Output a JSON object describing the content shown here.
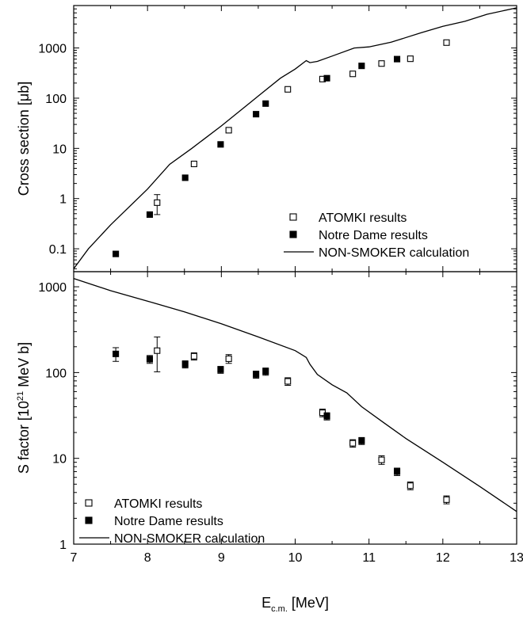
{
  "chart_data": [
    {
      "type": "scatter",
      "title": "",
      "ylabel_parts": [
        "Cross section [",
        "μ",
        "b]"
      ],
      "xlim": [
        7,
        13
      ],
      "ylim": [
        0.035,
        7000
      ],
      "yscale": "log",
      "ytick_values": [
        0.1,
        1,
        10,
        100,
        1000
      ],
      "ytick_labels": [
        "0.1",
        "1",
        "10",
        "100",
        "1000"
      ],
      "legend_position": "bottom-right",
      "series": [
        {
          "name": "ATOMKI results",
          "marker": "open-square",
          "points": [
            {
              "x": 8.13,
              "y": 0.83,
              "err_lo": 0.35,
              "err_hi": 0.37
            },
            {
              "x": 8.63,
              "y": 4.9
            },
            {
              "x": 9.1,
              "y": 23
            },
            {
              "x": 9.9,
              "y": 150
            },
            {
              "x": 10.37,
              "y": 240
            },
            {
              "x": 10.78,
              "y": 305
            },
            {
              "x": 11.17,
              "y": 490
            },
            {
              "x": 11.56,
              "y": 610
            },
            {
              "x": 12.05,
              "y": 1280
            }
          ]
        },
        {
          "name": "Notre Dame results",
          "marker": "filled-square",
          "points": [
            {
              "x": 7.57,
              "y": 0.079
            },
            {
              "x": 8.03,
              "y": 0.48
            },
            {
              "x": 8.51,
              "y": 2.6
            },
            {
              "x": 8.99,
              "y": 12
            },
            {
              "x": 9.47,
              "y": 48
            },
            {
              "x": 9.6,
              "y": 78
            },
            {
              "x": 10.43,
              "y": 250
            },
            {
              "x": 10.9,
              "y": 440
            },
            {
              "x": 11.38,
              "y": 600
            }
          ]
        },
        {
          "name": "NON-SMOKER calculation",
          "marker": "line",
          "points": [
            {
              "x": 7.0,
              "y": 0.04
            },
            {
              "x": 7.2,
              "y": 0.1
            },
            {
              "x": 7.5,
              "y": 0.3
            },
            {
              "x": 8.0,
              "y": 1.55
            },
            {
              "x": 8.3,
              "y": 4.8
            },
            {
              "x": 8.6,
              "y": 10
            },
            {
              "x": 9.0,
              "y": 28
            },
            {
              "x": 9.5,
              "y": 110
            },
            {
              "x": 9.8,
              "y": 250
            },
            {
              "x": 10.0,
              "y": 380
            },
            {
              "x": 10.15,
              "y": 560
            },
            {
              "x": 10.2,
              "y": 510
            },
            {
              "x": 10.3,
              "y": 540
            },
            {
              "x": 10.5,
              "y": 690
            },
            {
              "x": 10.8,
              "y": 1000
            },
            {
              "x": 11.0,
              "y": 1050
            },
            {
              "x": 11.3,
              "y": 1300
            },
            {
              "x": 11.7,
              "y": 2000
            },
            {
              "x": 12.0,
              "y": 2700
            },
            {
              "x": 12.3,
              "y": 3400
            },
            {
              "x": 12.6,
              "y": 4700
            },
            {
              "x": 13.0,
              "y": 6300
            }
          ]
        }
      ]
    },
    {
      "type": "scatter",
      "title": "",
      "ylabel_parts": [
        "S factor [10",
        "21",
        " MeV b]"
      ],
      "xlabel_parts": [
        "E",
        "c.m.",
        " [MeV]"
      ],
      "xlim": [
        7,
        13
      ],
      "ylim": [
        1,
        1500
      ],
      "yscale": "log",
      "xtick_values": [
        7,
        8,
        9,
        10,
        11,
        12,
        13
      ],
      "xtick_labels": [
        "7",
        "8",
        "9",
        "10",
        "11",
        "12",
        "13"
      ],
      "ytick_values": [
        1,
        10,
        100,
        1000
      ],
      "ytick_labels": [
        "1",
        "10",
        "100",
        "1000"
      ],
      "legend_position": "bottom-left",
      "series": [
        {
          "name": "ATOMKI results",
          "marker": "open-square",
          "points": [
            {
              "x": 8.13,
              "y": 180,
              "err_lo": 78,
              "err_hi": 80
            },
            {
              "x": 8.63,
              "y": 155,
              "err_lo": 15,
              "err_hi": 15
            },
            {
              "x": 9.1,
              "y": 145,
              "err_lo": 17,
              "err_hi": 17
            },
            {
              "x": 9.9,
              "y": 79,
              "err_lo": 8,
              "err_hi": 8
            },
            {
              "x": 10.37,
              "y": 34,
              "err_lo": 3.5,
              "err_hi": 3.5
            },
            {
              "x": 10.78,
              "y": 15,
              "err_lo": 1.5,
              "err_hi": 1.5
            },
            {
              "x": 11.17,
              "y": 9.6,
              "err_lo": 1.1,
              "err_hi": 1.1
            },
            {
              "x": 11.56,
              "y": 4.8,
              "err_lo": 0.5,
              "err_hi": 0.5
            },
            {
              "x": 12.05,
              "y": 3.3,
              "err_lo": 0.35,
              "err_hi": 0.35
            }
          ]
        },
        {
          "name": "Notre Dame results",
          "marker": "filled-square",
          "points": [
            {
              "x": 7.57,
              "y": 165,
              "err_lo": 30,
              "err_hi": 30
            },
            {
              "x": 8.03,
              "y": 143,
              "err_lo": 15,
              "err_hi": 15
            },
            {
              "x": 8.51,
              "y": 125,
              "err_lo": 12,
              "err_hi": 12
            },
            {
              "x": 8.99,
              "y": 108,
              "err_lo": 10,
              "err_hi": 10
            },
            {
              "x": 9.47,
              "y": 95,
              "err_lo": 9,
              "err_hi": 9
            },
            {
              "x": 9.6,
              "y": 103,
              "err_lo": 10,
              "err_hi": 10
            },
            {
              "x": 10.43,
              "y": 31,
              "err_lo": 3,
              "err_hi": 3
            },
            {
              "x": 10.9,
              "y": 16,
              "err_lo": 1.5,
              "err_hi": 1.5
            },
            {
              "x": 11.38,
              "y": 7,
              "err_lo": 0.7,
              "err_hi": 0.7
            }
          ]
        },
        {
          "name": "NON-SMOKER calculation",
          "marker": "line",
          "points": [
            {
              "x": 7.0,
              "y": 1250
            },
            {
              "x": 7.5,
              "y": 900
            },
            {
              "x": 8.0,
              "y": 680
            },
            {
              "x": 8.5,
              "y": 510
            },
            {
              "x": 9.0,
              "y": 370
            },
            {
              "x": 9.5,
              "y": 260
            },
            {
              "x": 10.0,
              "y": 180
            },
            {
              "x": 10.15,
              "y": 150
            },
            {
              "x": 10.2,
              "y": 125
            },
            {
              "x": 10.3,
              "y": 95
            },
            {
              "x": 10.5,
              "y": 72
            },
            {
              "x": 10.7,
              "y": 58
            },
            {
              "x": 10.9,
              "y": 40
            },
            {
              "x": 11.2,
              "y": 26
            },
            {
              "x": 11.5,
              "y": 17
            },
            {
              "x": 12.0,
              "y": 9
            },
            {
              "x": 12.5,
              "y": 4.7
            },
            {
              "x": 13.0,
              "y": 2.4
            }
          ]
        }
      ]
    }
  ]
}
